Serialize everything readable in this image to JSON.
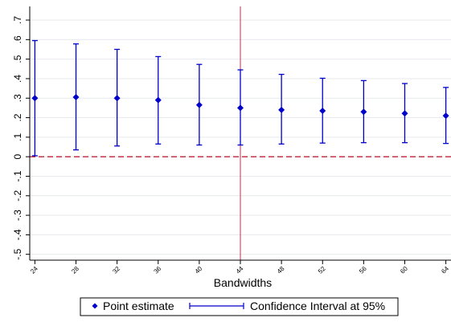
{
  "chart_data": {
    "type": "scatter",
    "title": "",
    "xlabel": "Bandwidths",
    "ylabel": "",
    "x": [
      24,
      28,
      32,
      36,
      40,
      44,
      48,
      52,
      56,
      60,
      64
    ],
    "x_tick_labels": [
      "24",
      "28",
      "32",
      "36",
      "40",
      "44",
      "48",
      "52",
      "56",
      "60",
      "64"
    ],
    "y_tick_values": [
      -0.5,
      -0.4,
      -0.3,
      -0.2,
      -0.1,
      0,
      0.1,
      0.2,
      0.3,
      0.4,
      0.5,
      0.6,
      0.7
    ],
    "y_tick_labels": [
      "-.5",
      "-.4",
      "-.3",
      "-.2",
      "-.1",
      "0",
      ".1",
      ".2",
      ".3",
      ".4",
      ".5",
      ".6",
      ".7"
    ],
    "ylim": [
      -0.53,
      0.77
    ],
    "series": [
      {
        "name": "Point estimate",
        "values": [
          0.3,
          0.305,
          0.3,
          0.29,
          0.265,
          0.25,
          0.24,
          0.235,
          0.23,
          0.222,
          0.21
        ]
      }
    ],
    "ci_lower": [
      0.005,
      0.035,
      0.055,
      0.065,
      0.06,
      0.06,
      0.065,
      0.07,
      0.072,
      0.072,
      0.068
    ],
    "ci_upper": [
      0.595,
      0.578,
      0.55,
      0.513,
      0.473,
      0.445,
      0.422,
      0.402,
      0.39,
      0.375,
      0.355
    ],
    "reference_lines": {
      "horizontal_y": 0,
      "vertical_x": 44
    },
    "legend": {
      "placement": "bottom",
      "entries": [
        "Point estimate",
        "Confidence Interval at 95%"
      ]
    },
    "grid": true,
    "colors": {
      "markers": "#0000cc",
      "ci": "#0000cc",
      "zero_line": "#c0223b",
      "vertical_line": "#c0304c",
      "grid": "#e6eaee",
      "axis": "#000000"
    }
  }
}
